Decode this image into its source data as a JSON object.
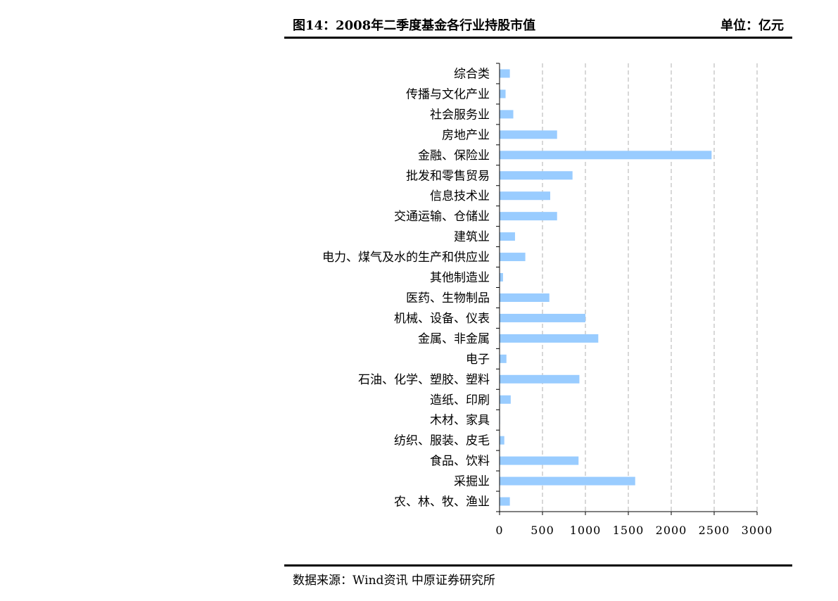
{
  "header": {
    "title": "图14：2008年二季度基金各行业持股市值",
    "unit": "单位：亿元"
  },
  "footer": {
    "source": "数据来源：Wind资讯 中原证券研究所"
  },
  "colors": {
    "bar": "#99ccff",
    "grid": "#b0b0b0",
    "axis": "#000000"
  },
  "chart_data": {
    "type": "bar",
    "orientation": "horizontal",
    "categories": [
      "综合类",
      "传播与文化产业",
      "社会服务业",
      "房地产业",
      "金融、保险业",
      "批发和零售贸易",
      "信息技术业",
      "交通运输、仓储业",
      "建筑业",
      "电力、煤气及水的生产和供应业",
      "其他制造业",
      "医药、生物制品",
      "机械、设备、仪表",
      "金属、非金属",
      "电子",
      "石油、化学、塑胶、塑料",
      "造纸、印刷",
      "木材、家具",
      "纺织、服装、皮毛",
      "食品、饮料",
      "采掘业",
      "农、林、牧、渔业"
    ],
    "values": [
      120,
      70,
      160,
      670,
      2470,
      850,
      590,
      670,
      180,
      300,
      40,
      580,
      1000,
      1150,
      80,
      930,
      130,
      5,
      55,
      920,
      1580,
      120
    ],
    "xlim": [
      0,
      3000
    ],
    "xticks": [
      "0",
      "500",
      "1000",
      "1500",
      "2000",
      "2500",
      "3000"
    ],
    "xtick_values": [
      0,
      500,
      1000,
      1500,
      2000,
      2500,
      3000
    ],
    "grid": "vertical-dashed",
    "legend": "none"
  }
}
